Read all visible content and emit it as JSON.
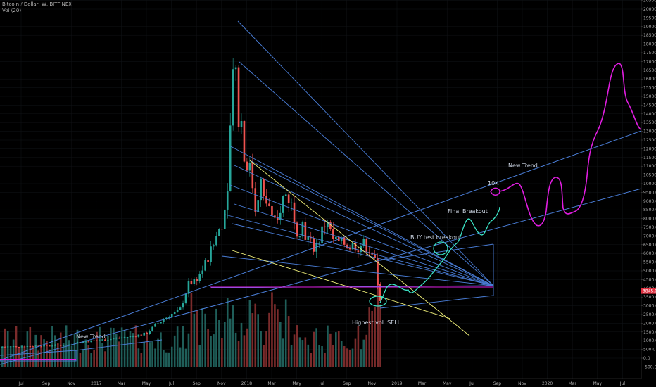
{
  "header": {
    "symbol": "Bitcoin / Dollar, W, BITFINEX",
    "volume": "Vol (20)"
  },
  "colors": {
    "background": "#000000",
    "up": "#26a69a",
    "down": "#ef5350",
    "up_volume": "#1f5e59",
    "down_volume": "#7a2b2b",
    "trend_lines": "#4a7ed8",
    "yellow_line": "#f2f27a",
    "magenta": "#e01de0",
    "teal_path": "#3ce6c8",
    "price_marker": "#e03040"
  },
  "chart_data": {
    "type": "candlestick",
    "y_axis": {
      "ticks": [
        "20500.0",
        "20000.0",
        "19500.0",
        "19000.0",
        "18500.0",
        "18000.0",
        "17500.0",
        "17000.0",
        "16500.0",
        "16000.0",
        "15500.0",
        "15000.0",
        "14500.0",
        "14000.0",
        "13500.0",
        "13000.0",
        "12500.0",
        "12000.0",
        "11500.0",
        "11000.0",
        "10500.0",
        "10000.0",
        "9500.0",
        "9000.0",
        "8500.0",
        "8000.0",
        "7500.0",
        "7000.0",
        "6500.0",
        "6000.0",
        "5500.0",
        "5000.0",
        "4500.0",
        "4000.0",
        "3500.0",
        "3000.0",
        "2500.0",
        "2000.0",
        "1500.0",
        "1000.0",
        "500.0",
        "0.0",
        "-500.0"
      ],
      "range": [
        -750,
        20750
      ],
      "current_price": "3845.0"
    },
    "x_axis": {
      "ticks": [
        "Jul",
        "Sep",
        "Nov",
        "2017",
        "Mar",
        "May",
        "Jul",
        "Sep",
        "Nov",
        "2018",
        "Mar",
        "May",
        "Jul",
        "Sep",
        "Nov",
        "2019",
        "Mar",
        "May",
        "Jul",
        "Sep",
        "Nov",
        "2020",
        "Mar",
        "May",
        "Jul"
      ]
    },
    "annotations": {
      "new_trend_left": "New Trend",
      "new_trend_right": "New Trend",
      "highest_vol_sell": "Highest vol. SELL",
      "buy_test_breakout": "BUY test breakout",
      "final_breakout": "Final Breakout",
      "ten_k": "10K"
    }
  }
}
